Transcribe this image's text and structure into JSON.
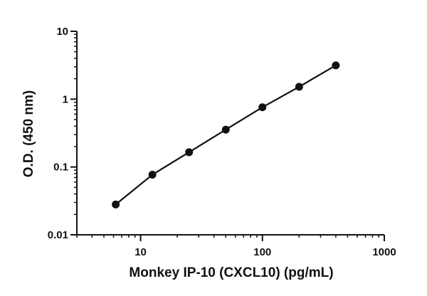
{
  "chart_data": {
    "type": "scatter",
    "title": "",
    "xlabel": "Monkey IP-10 (CXCL10) (pg/mL)",
    "ylabel": "O.D. (450 nm)",
    "xscale": "log",
    "yscale": "log",
    "xlim": [
      3,
      1000
    ],
    "ylim": [
      0.01,
      10
    ],
    "x_ticks": [
      {
        "value": 10,
        "label": "10"
      },
      {
        "value": 100,
        "label": "100"
      },
      {
        "value": 1000,
        "label": "1000"
      }
    ],
    "y_ticks": [
      {
        "value": 0.01,
        "label": "0.01"
      },
      {
        "value": 0.1,
        "label": "0.1"
      },
      {
        "value": 1,
        "label": "1"
      },
      {
        "value": 10,
        "label": "10"
      }
    ],
    "grid": false,
    "legend": "none",
    "series": [
      {
        "x": [
          6.25,
          12.5,
          25,
          50,
          100,
          200,
          400
        ],
        "y": [
          0.028,
          0.077,
          0.165,
          0.355,
          0.76,
          1.52,
          3.15
        ]
      }
    ],
    "colors": {
      "points": "#111111",
      "line": "#111111",
      "axis": "#111111"
    }
  }
}
